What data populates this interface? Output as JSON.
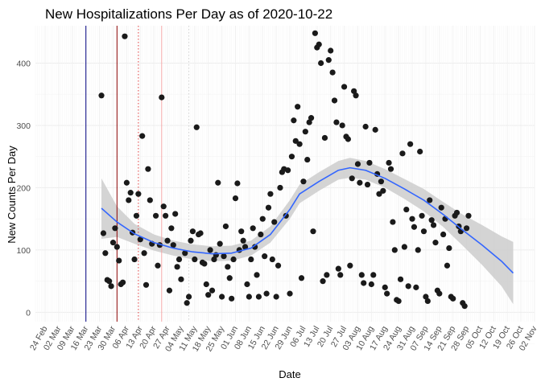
{
  "chart_data": {
    "type": "scatter",
    "title": "New Hospitalizations Per Day as of 2020-10-22",
    "xlabel": "Date",
    "ylabel": "New Counts Per Day",
    "ylim": [
      -15,
      460
    ],
    "xlim": [
      "2020-02-19",
      "2020-11-02"
    ],
    "grid": true,
    "y_ticks": [
      0,
      100,
      200,
      300,
      400
    ],
    "x_ticks": [
      {
        "date": "2020-02-24",
        "label": "24 Feb"
      },
      {
        "date": "2020-03-02",
        "label": "02 Mar"
      },
      {
        "date": "2020-03-09",
        "label": "09 Mar"
      },
      {
        "date": "2020-03-16",
        "label": "16 Mar"
      },
      {
        "date": "2020-03-23",
        "label": "23 Mar"
      },
      {
        "date": "2020-03-30",
        "label": "30 Mar"
      },
      {
        "date": "2020-04-06",
        "label": "06 Apr"
      },
      {
        "date": "2020-04-13",
        "label": "13 Apr"
      },
      {
        "date": "2020-04-20",
        "label": "20 Apr"
      },
      {
        "date": "2020-04-27",
        "label": "27 Apr"
      },
      {
        "date": "2020-05-04",
        "label": "04 May"
      },
      {
        "date": "2020-05-11",
        "label": "11 May"
      },
      {
        "date": "2020-05-18",
        "label": "18 May"
      },
      {
        "date": "2020-05-25",
        "label": "25 May"
      },
      {
        "date": "2020-06-01",
        "label": "01 Jun"
      },
      {
        "date": "2020-06-08",
        "label": "08 Jun"
      },
      {
        "date": "2020-06-15",
        "label": "15 Jun"
      },
      {
        "date": "2020-06-22",
        "label": "22 Jun"
      },
      {
        "date": "2020-06-29",
        "label": "29 Jun"
      },
      {
        "date": "2020-07-06",
        "label": "06 Jul"
      },
      {
        "date": "2020-07-13",
        "label": "13 Jul"
      },
      {
        "date": "2020-07-20",
        "label": "20 Jul"
      },
      {
        "date": "2020-07-27",
        "label": "27 Jul"
      },
      {
        "date": "2020-08-03",
        "label": "03 Aug"
      },
      {
        "date": "2020-08-10",
        "label": "10 Aug"
      },
      {
        "date": "2020-08-17",
        "label": "17 Aug"
      },
      {
        "date": "2020-08-24",
        "label": "24 Aug"
      },
      {
        "date": "2020-08-31",
        "label": "31 Aug"
      },
      {
        "date": "2020-09-07",
        "label": "07 Sep"
      },
      {
        "date": "2020-09-14",
        "label": "14 Sep"
      },
      {
        "date": "2020-09-21",
        "label": "21 Sep"
      },
      {
        "date": "2020-09-28",
        "label": "28 Sep"
      },
      {
        "date": "2020-10-05",
        "label": "05 Oct"
      },
      {
        "date": "2020-10-12",
        "label": "12 Oct"
      },
      {
        "date": "2020-10-19",
        "label": "19 Oct"
      },
      {
        "date": "2020-10-26",
        "label": "26 Oct"
      },
      {
        "date": "2020-11-02",
        "label": "02 Nov"
      }
    ],
    "reference_lines": [
      {
        "date": "2020-03-16",
        "color": "#000080",
        "style": "solid"
      },
      {
        "date": "2020-04-01",
        "color": "#8b0000",
        "style": "solid"
      },
      {
        "date": "2020-04-12",
        "color": "#e03c3c",
        "style": "dotted"
      },
      {
        "date": "2020-04-24",
        "color": "#f4a6a6",
        "style": "solid"
      },
      {
        "date": "2020-05-08",
        "color": "#d0d0d0",
        "style": "dotted"
      }
    ],
    "point_color": "#1a1a1a",
    "smooth_color": "#3366ff",
    "band_color": "#cccccc",
    "points": [
      [
        "2020-03-24",
        348
      ],
      [
        "2020-03-25",
        127
      ],
      [
        "2020-03-26",
        95
      ],
      [
        "2020-03-27",
        52
      ],
      [
        "2020-03-28",
        50
      ],
      [
        "2020-03-29",
        42
      ],
      [
        "2020-03-30",
        112
      ],
      [
        "2020-03-31",
        135
      ],
      [
        "2020-04-01",
        105
      ],
      [
        "2020-04-02",
        83
      ],
      [
        "2020-04-03",
        45
      ],
      [
        "2020-04-04",
        48
      ],
      [
        "2020-04-05",
        443
      ],
      [
        "2020-04-06",
        208
      ],
      [
        "2020-04-07",
        180
      ],
      [
        "2020-04-08",
        192
      ],
      [
        "2020-04-09",
        128
      ],
      [
        "2020-04-10",
        85
      ],
      [
        "2020-04-11",
        155
      ],
      [
        "2020-04-12",
        190
      ],
      [
        "2020-04-13",
        117
      ],
      [
        "2020-04-14",
        283
      ],
      [
        "2020-04-15",
        95
      ],
      [
        "2020-04-16",
        44
      ],
      [
        "2020-04-17",
        230
      ],
      [
        "2020-04-18",
        180
      ],
      [
        "2020-04-19",
        110
      ],
      [
        "2020-04-21",
        155
      ],
      [
        "2020-04-22",
        75
      ],
      [
        "2020-04-23",
        108
      ],
      [
        "2020-04-24",
        345
      ],
      [
        "2020-04-25",
        170
      ],
      [
        "2020-04-26",
        155
      ],
      [
        "2020-04-27",
        115
      ],
      [
        "2020-04-28",
        35
      ],
      [
        "2020-04-29",
        135
      ],
      [
        "2020-04-30",
        108
      ],
      [
        "2020-05-01",
        158
      ],
      [
        "2020-05-02",
        73
      ],
      [
        "2020-05-03",
        85
      ],
      [
        "2020-05-04",
        53
      ],
      [
        "2020-05-06",
        95
      ],
      [
        "2020-05-07",
        15
      ],
      [
        "2020-05-08",
        25
      ],
      [
        "2020-05-09",
        115
      ],
      [
        "2020-05-10",
        130
      ],
      [
        "2020-05-11",
        85
      ],
      [
        "2020-05-12",
        297
      ],
      [
        "2020-05-13",
        125
      ],
      [
        "2020-05-14",
        127
      ],
      [
        "2020-05-15",
        80
      ],
      [
        "2020-05-16",
        78
      ],
      [
        "2020-05-17",
        45
      ],
      [
        "2020-05-18",
        28
      ],
      [
        "2020-05-19",
        100
      ],
      [
        "2020-05-20",
        35
      ],
      [
        "2020-05-21",
        85
      ],
      [
        "2020-05-22",
        92
      ],
      [
        "2020-05-23",
        208
      ],
      [
        "2020-05-24",
        110
      ],
      [
        "2020-05-25",
        25
      ],
      [
        "2020-05-26",
        90
      ],
      [
        "2020-05-27",
        138
      ],
      [
        "2020-05-28",
        73
      ],
      [
        "2020-05-29",
        55
      ],
      [
        "2020-05-30",
        22
      ],
      [
        "2020-05-31",
        85
      ],
      [
        "2020-06-01",
        183
      ],
      [
        "2020-06-02",
        207
      ],
      [
        "2020-06-03",
        100
      ],
      [
        "2020-06-04",
        130
      ],
      [
        "2020-06-05",
        115
      ],
      [
        "2020-06-06",
        105
      ],
      [
        "2020-06-07",
        45
      ],
      [
        "2020-06-08",
        25
      ],
      [
        "2020-06-09",
        85
      ],
      [
        "2020-06-10",
        135
      ],
      [
        "2020-06-11",
        105
      ],
      [
        "2020-06-12",
        60
      ],
      [
        "2020-06-13",
        25
      ],
      [
        "2020-06-14",
        125
      ],
      [
        "2020-06-15",
        150
      ],
      [
        "2020-06-16",
        90
      ],
      [
        "2020-06-17",
        30
      ],
      [
        "2020-06-18",
        168
      ],
      [
        "2020-06-19",
        190
      ],
      [
        "2020-06-20",
        85
      ],
      [
        "2020-06-21",
        145
      ],
      [
        "2020-06-22",
        25
      ],
      [
        "2020-06-23",
        75
      ],
      [
        "2020-06-24",
        200
      ],
      [
        "2020-06-25",
        225
      ],
      [
        "2020-06-26",
        230
      ],
      [
        "2020-06-27",
        155
      ],
      [
        "2020-06-28",
        228
      ],
      [
        "2020-06-29",
        30
      ],
      [
        "2020-06-30",
        250
      ],
      [
        "2020-07-01",
        308
      ],
      [
        "2020-07-02",
        275
      ],
      [
        "2020-07-03",
        330
      ],
      [
        "2020-07-04",
        270
      ],
      [
        "2020-07-05",
        55
      ],
      [
        "2020-07-06",
        210
      ],
      [
        "2020-07-07",
        290
      ],
      [
        "2020-07-08",
        245
      ],
      [
        "2020-07-09",
        305
      ],
      [
        "2020-07-10",
        312
      ],
      [
        "2020-07-11",
        130
      ],
      [
        "2020-07-12",
        448
      ],
      [
        "2020-07-13",
        425
      ],
      [
        "2020-07-14",
        430
      ],
      [
        "2020-07-15",
        400
      ],
      [
        "2020-07-16",
        50
      ],
      [
        "2020-07-17",
        280
      ],
      [
        "2020-07-18",
        60
      ],
      [
        "2020-07-19",
        405
      ],
      [
        "2020-07-20",
        420
      ],
      [
        "2020-07-21",
        385
      ],
      [
        "2020-07-22",
        340
      ],
      [
        "2020-07-23",
        305
      ],
      [
        "2020-07-24",
        70
      ],
      [
        "2020-07-25",
        60
      ],
      [
        "2020-07-26",
        300
      ],
      [
        "2020-07-27",
        362
      ],
      [
        "2020-07-28",
        282
      ],
      [
        "2020-07-29",
        278
      ],
      [
        "2020-07-30",
        75
      ],
      [
        "2020-07-31",
        215
      ],
      [
        "2020-08-01",
        355
      ],
      [
        "2020-08-02",
        348
      ],
      [
        "2020-08-03",
        238
      ],
      [
        "2020-08-04",
        208
      ],
      [
        "2020-08-05",
        60
      ],
      [
        "2020-08-06",
        47
      ],
      [
        "2020-08-07",
        298
      ],
      [
        "2020-08-08",
        205
      ],
      [
        "2020-08-09",
        240
      ],
      [
        "2020-08-10",
        45
      ],
      [
        "2020-08-11",
        60
      ],
      [
        "2020-08-12",
        293
      ],
      [
        "2020-08-13",
        222
      ],
      [
        "2020-08-14",
        190
      ],
      [
        "2020-08-15",
        210
      ],
      [
        "2020-08-16",
        195
      ],
      [
        "2020-08-17",
        40
      ],
      [
        "2020-08-18",
        30
      ],
      [
        "2020-08-19",
        240
      ],
      [
        "2020-08-20",
        230
      ],
      [
        "2020-08-21",
        145
      ],
      [
        "2020-08-22",
        100
      ],
      [
        "2020-08-23",
        20
      ],
      [
        "2020-08-24",
        18
      ],
      [
        "2020-08-25",
        53
      ],
      [
        "2020-08-26",
        255
      ],
      [
        "2020-08-27",
        105
      ],
      [
        "2020-08-28",
        165
      ],
      [
        "2020-08-29",
        42
      ],
      [
        "2020-08-30",
        270
      ],
      [
        "2020-08-31",
        150
      ],
      [
        "2020-09-01",
        137
      ],
      [
        "2020-09-02",
        40
      ],
      [
        "2020-09-03",
        100
      ],
      [
        "2020-09-04",
        258
      ],
      [
        "2020-09-05",
        155
      ],
      [
        "2020-09-06",
        130
      ],
      [
        "2020-09-07",
        25
      ],
      [
        "2020-09-08",
        18
      ],
      [
        "2020-09-09",
        180
      ],
      [
        "2020-09-10",
        148
      ],
      [
        "2020-09-11",
        140
      ],
      [
        "2020-09-12",
        112
      ],
      [
        "2020-09-13",
        35
      ],
      [
        "2020-09-14",
        30
      ],
      [
        "2020-09-15",
        168
      ],
      [
        "2020-09-16",
        125
      ],
      [
        "2020-09-17",
        150
      ],
      [
        "2020-09-18",
        75
      ],
      [
        "2020-09-19",
        103
      ],
      [
        "2020-09-20",
        25
      ],
      [
        "2020-09-21",
        22
      ],
      [
        "2020-09-22",
        155
      ],
      [
        "2020-09-23",
        160
      ],
      [
        "2020-09-24",
        138
      ],
      [
        "2020-09-25",
        130
      ],
      [
        "2020-09-26",
        15
      ],
      [
        "2020-09-27",
        10
      ],
      [
        "2020-09-28",
        135
      ],
      [
        "2020-09-29",
        155
      ]
    ],
    "smooth": [
      [
        "2020-03-24",
        167
      ],
      [
        "2020-04-01",
        145
      ],
      [
        "2020-04-10",
        126
      ],
      [
        "2020-04-20",
        112
      ],
      [
        "2020-04-30",
        103
      ],
      [
        "2020-05-10",
        97
      ],
      [
        "2020-05-20",
        94
      ],
      [
        "2020-05-30",
        95
      ],
      [
        "2020-06-09",
        103
      ],
      [
        "2020-06-19",
        125
      ],
      [
        "2020-06-29",
        165
      ],
      [
        "2020-07-04",
        190
      ],
      [
        "2020-07-14",
        210
      ],
      [
        "2020-07-24",
        228
      ],
      [
        "2020-07-30",
        232
      ],
      [
        "2020-08-07",
        228
      ],
      [
        "2020-08-17",
        215
      ],
      [
        "2020-08-27",
        198
      ],
      [
        "2020-09-06",
        180
      ],
      [
        "2020-09-16",
        157
      ],
      [
        "2020-09-26",
        132
      ],
      [
        "2020-10-06",
        108
      ],
      [
        "2020-10-16",
        82
      ],
      [
        "2020-10-22",
        63
      ]
    ],
    "band_upper": [
      [
        "2020-03-24",
        215
      ],
      [
        "2020-04-01",
        170
      ],
      [
        "2020-04-10",
        142
      ],
      [
        "2020-04-20",
        125
      ],
      [
        "2020-04-30",
        115
      ],
      [
        "2020-05-10",
        109
      ],
      [
        "2020-05-20",
        106
      ],
      [
        "2020-05-30",
        107
      ],
      [
        "2020-06-09",
        115
      ],
      [
        "2020-06-19",
        138
      ],
      [
        "2020-06-29",
        180
      ],
      [
        "2020-07-04",
        205
      ],
      [
        "2020-07-14",
        225
      ],
      [
        "2020-07-24",
        243
      ],
      [
        "2020-07-30",
        248
      ],
      [
        "2020-08-07",
        243
      ],
      [
        "2020-08-17",
        230
      ],
      [
        "2020-08-27",
        214
      ],
      [
        "2020-09-06",
        198
      ],
      [
        "2020-09-16",
        177
      ],
      [
        "2020-09-26",
        157
      ],
      [
        "2020-10-06",
        140
      ],
      [
        "2020-10-16",
        122
      ],
      [
        "2020-10-22",
        113
      ]
    ],
    "band_lower": [
      [
        "2020-03-24",
        118
      ],
      [
        "2020-04-01",
        121
      ],
      [
        "2020-04-10",
        110
      ],
      [
        "2020-04-20",
        99
      ],
      [
        "2020-04-30",
        91
      ],
      [
        "2020-05-10",
        85
      ],
      [
        "2020-05-20",
        82
      ],
      [
        "2020-05-30",
        83
      ],
      [
        "2020-06-09",
        91
      ],
      [
        "2020-06-19",
        112
      ],
      [
        "2020-06-29",
        150
      ],
      [
        "2020-07-04",
        175
      ],
      [
        "2020-07-14",
        195
      ],
      [
        "2020-07-24",
        213
      ],
      [
        "2020-07-30",
        216
      ],
      [
        "2020-08-07",
        213
      ],
      [
        "2020-08-17",
        200
      ],
      [
        "2020-08-27",
        182
      ],
      [
        "2020-09-06",
        162
      ],
      [
        "2020-09-16",
        137
      ],
      [
        "2020-09-26",
        107
      ],
      [
        "2020-10-06",
        76
      ],
      [
        "2020-10-16",
        42
      ],
      [
        "2020-10-22",
        13
      ]
    ]
  }
}
